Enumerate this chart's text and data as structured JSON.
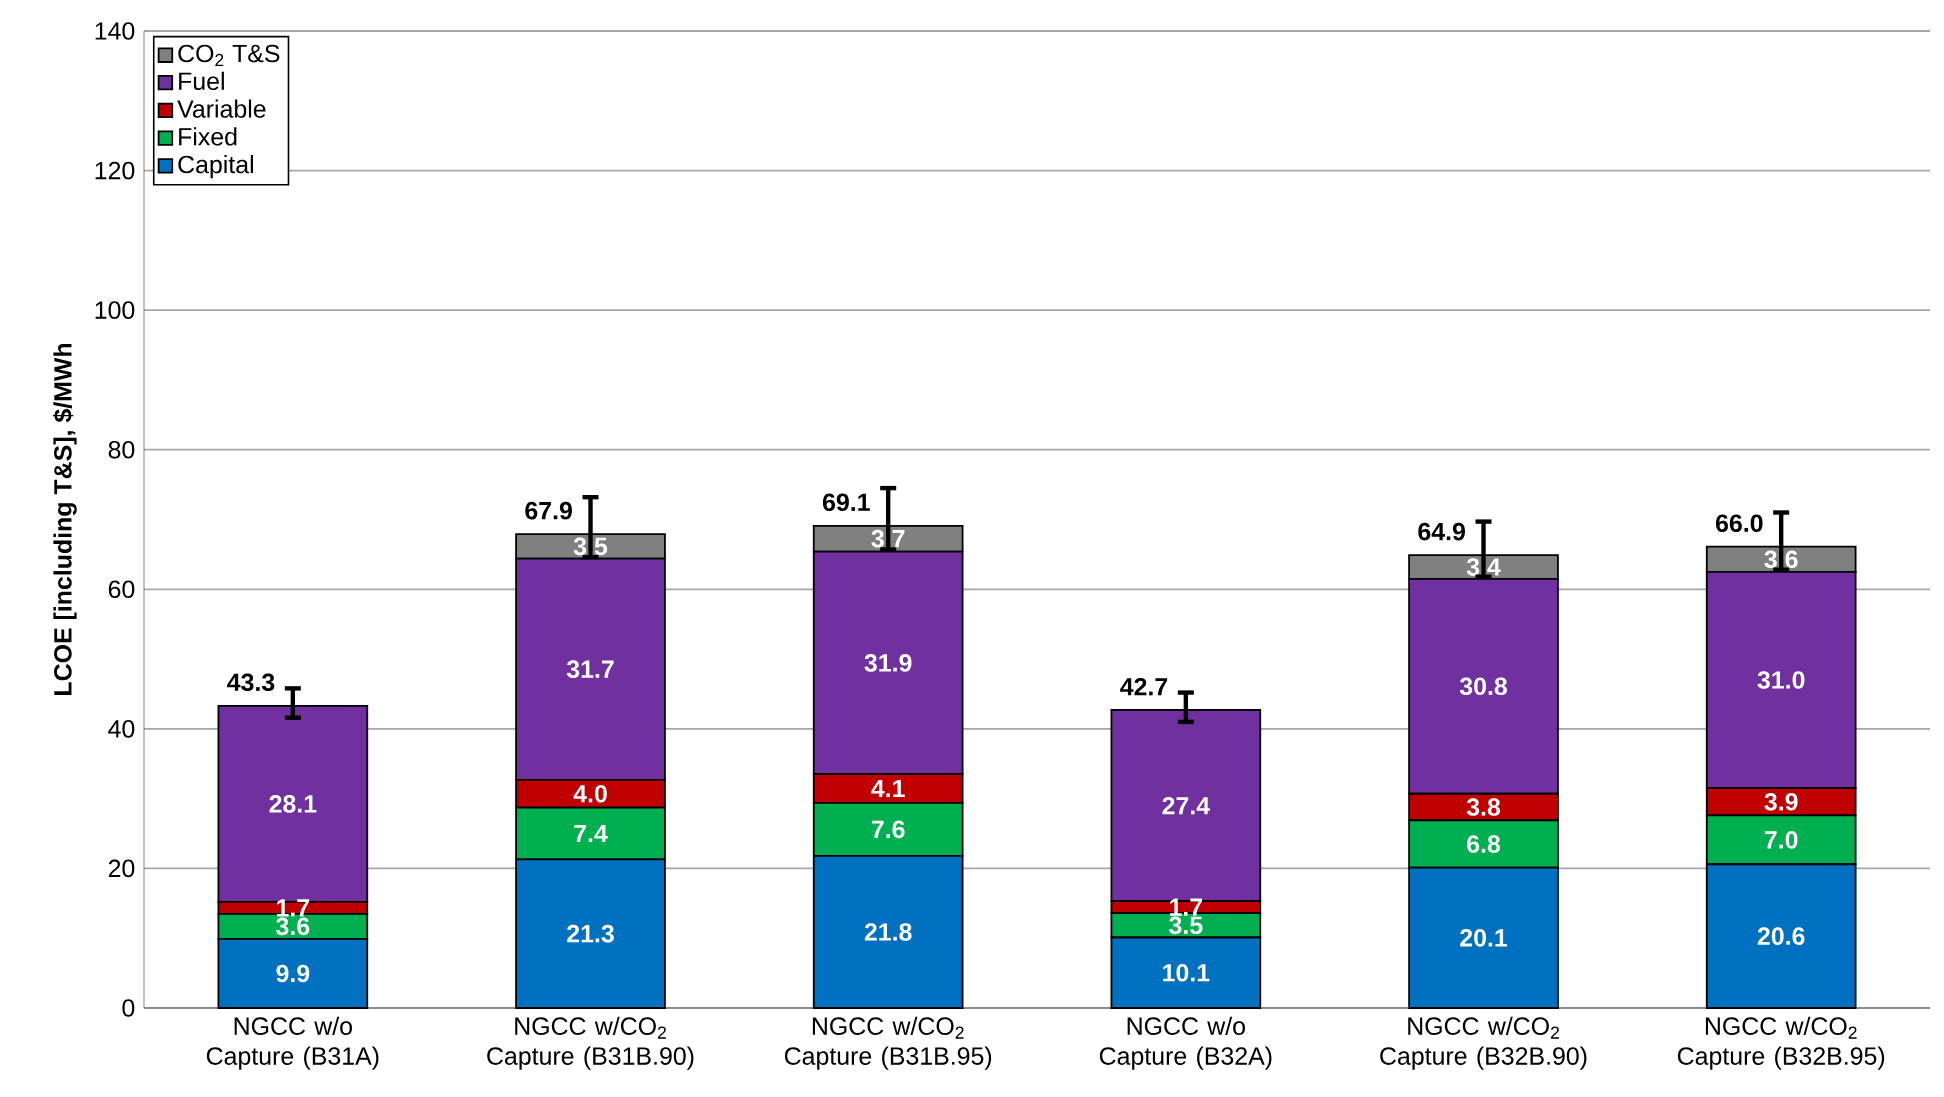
{
  "chart_data": {
    "type": "bar",
    "stacked": true,
    "ylabel": "LCOE [including T&S], $/MWh",
    "categories": [
      "NGCC w/o Capture (B31A)",
      "NGCC w/CO$_{2}$ Capture (B31B.90)",
      "NGCC w/CO$_{2}$ Capture (B31B.95)",
      "NGCC w/o Capture (B32A)",
      "NGCC w/CO$_{2}$ Capture (B32B.90)",
      "NGCC w/CO$_{2}$ Capture (B32B.95)"
    ],
    "series": [
      {
        "name": "Capital",
        "color": "#0070c0",
        "values": [
          9.9,
          21.3,
          21.8,
          10.1,
          20.1,
          20.6
        ],
        "value_labels": [
          "9.9",
          "21.3",
          "21.8",
          "10.1",
          "20.1",
          "20.6"
        ]
      },
      {
        "name": "Fixed",
        "color": "#00b050",
        "values": [
          3.6,
          7.4,
          7.6,
          3.5,
          6.8,
          7.0
        ],
        "value_labels": [
          "3.6",
          "7.4",
          "7.6",
          "3.5",
          "6.8",
          "7.0"
        ]
      },
      {
        "name": "Variable",
        "color": "#c00000",
        "values": [
          1.7,
          4.0,
          4.1,
          1.7,
          3.8,
          3.9
        ],
        "value_labels": [
          "1.7",
          "4.0",
          "4.1",
          "1.7",
          "3.8",
          "3.9"
        ]
      },
      {
        "name": "Fuel",
        "color": "#7030a0",
        "values": [
          28.1,
          31.7,
          31.9,
          27.4,
          30.8,
          31.0
        ],
        "value_labels": [
          "28.1",
          "31.7",
          "31.9",
          "27.4",
          "30.8",
          "31.0"
        ]
      },
      {
        "name": "CO$_{2}$ T&S",
        "color": "#808080",
        "values": [
          0,
          3.5,
          3.7,
          0,
          3.4,
          3.6
        ],
        "value_labels": [
          null,
          "3.5",
          "3.7",
          null,
          "3.4",
          "3.6"
        ],
        "errors": [
          [
            41.6,
            45.8
          ],
          [
            64.6,
            73.2
          ],
          [
            65.7,
            74.5
          ],
          [
            41.0,
            45.2
          ],
          [
            61.8,
            69.7
          ],
          [
            62.8,
            71.0
          ]
        ]
      }
    ],
    "totals": [
      "43.3",
      "67.9",
      "69.1",
      "42.7",
      "64.9",
      "66.0"
    ],
    "ylim": [
      0,
      140
    ],
    "yticks": [
      0,
      20,
      40,
      60,
      80,
      100,
      120,
      140
    ],
    "grid": "y",
    "legend": "top left"
  }
}
